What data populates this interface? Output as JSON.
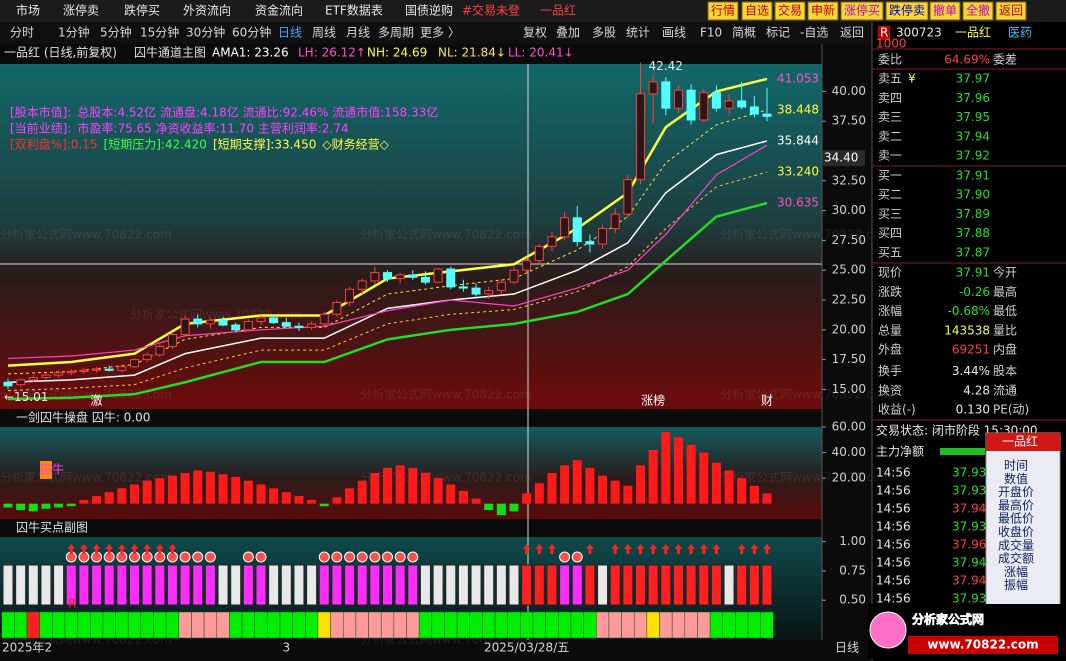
{
  "menu": [
    "市场",
    "涨停卖",
    "跌停买",
    "外资流向",
    "资金流向",
    "ETF数据表",
    "国债逆购",
    "#交易未登",
    "一品红"
  ],
  "buttons": [
    "行情",
    "自选",
    "交易",
    "申新",
    "涨停买",
    "跌停卖",
    "撤单",
    "全撤",
    "返回"
  ],
  "periods": [
    "分时",
    "1分钟",
    "5分钟",
    "15分钟",
    "30分钟",
    "60分钟",
    "日线",
    "周线",
    "月线",
    "多周期",
    "更多 〉"
  ],
  "active_period": 6,
  "tools": [
    "复权",
    "叠加",
    "多股",
    "统计",
    "画线",
    "F10",
    "简概",
    "标记",
    "-自选",
    "返回"
  ],
  "header": {
    "title": "一品红 (日线,前复权)",
    "indicator": "囚牛通道主图",
    "items": [
      {
        "text": "AMA1: 23.26",
        "color": "#ffffff"
      },
      {
        "text": "LH: 26.12↑",
        "color": "#ff50d0"
      },
      {
        "text": "NH: 24.69",
        "color": "#ffff40"
      },
      {
        "text": "NL: 21.84↓",
        "color": "#ffe060"
      },
      {
        "text": "LL: 20.41↓",
        "color": "#ff50d0"
      }
    ]
  },
  "info_lines": [
    [
      {
        "text": "[股本市值]:",
        "color": "#ff40ff"
      },
      {
        "text": "总股本:4.52亿 流通盘:4.18亿 流通比:92.46% 流通市值:158.33亿",
        "color": "#ff40ff"
      }
    ],
    [
      {
        "text": "[当前业绩]:",
        "color": "#ff40ff"
      },
      {
        "text": "市盈率:75.65 净资收益率:11.70 主营利润率:2.74",
        "color": "#ff40ff"
      }
    ],
    [
      {
        "text": "[双利盘%]:0.15",
        "color": "#ff3030"
      },
      {
        "text": "[短期压力]:42.420",
        "color": "#40ff40"
      },
      {
        "text": "[短期支撑]:33.450",
        "color": "#ffff40"
      },
      {
        "text": "◇财务经营◇",
        "color": "#ffff40"
      }
    ]
  ],
  "watermark": "分析家公式网www.70822.com",
  "chart_data": [
    {
      "type": "candlestick",
      "ylim": [
        13.44,
        42.3
      ],
      "yticks": [
        {
          "value": 40,
          "label": "40.00"
        },
        {
          "value": 37.5,
          "label": "37.50"
        },
        {
          "value": 32.5,
          "label": "32.50"
        },
        {
          "value": 30,
          "label": "30.00"
        },
        {
          "value": 27.5,
          "label": "27.50"
        },
        {
          "value": 25,
          "label": "25.00"
        },
        {
          "value": 22.5,
          "label": "22.50"
        },
        {
          "value": 20,
          "label": "20.00"
        },
        {
          "value": 17.5,
          "label": "17.50"
        },
        {
          "value": 15,
          "label": "15.00"
        }
      ],
      "cursor_price": {
        "value": 34.4,
        "label": "34.40"
      },
      "up_color": "#ff3c3c",
      "down_color": "#54ffff",
      "categories": [
        "2025年2",
        null,
        null,
        null,
        null,
        null,
        null,
        null,
        null,
        null,
        null,
        null,
        null,
        null,
        null,
        null,
        null,
        null,
        null,
        null,
        null,
        null,
        "3",
        null,
        null,
        null,
        null,
        null,
        null,
        null,
        null,
        null,
        null,
        null,
        null,
        null,
        null,
        null,
        null,
        null,
        null,
        "2025/03/28/五",
        null,
        null,
        null,
        null,
        null,
        null,
        null,
        null,
        null,
        null,
        null,
        null,
        null,
        null,
        null,
        null,
        null,
        null,
        null
      ],
      "events": [
        null,
        null,
        null,
        null,
        null,
        null,
        null,
        "激",
        null,
        null,
        null,
        null,
        null,
        null,
        null,
        null,
        null,
        null,
        null,
        null,
        null,
        null,
        null,
        null,
        null,
        null,
        null,
        null,
        null,
        null,
        null,
        null,
        null,
        null,
        null,
        null,
        null,
        null,
        null,
        null,
        null,
        null,
        null,
        null,
        null,
        null,
        null,
        null,
        null,
        null,
        null,
        "涨榜",
        null,
        null,
        null,
        null,
        null,
        null,
        null,
        null,
        "财"
      ],
      "open": [
        15.6,
        15.4,
        15.8,
        16.0,
        16.2,
        16.4,
        16.5,
        16.6,
        16.7,
        16.6,
        16.9,
        17.5,
        17.9,
        18.6,
        19.6,
        20.9,
        20.5,
        20.8,
        20.4,
        20.0,
        20.7,
        21.0,
        20.6,
        20.3,
        20.2,
        20.5,
        21.3,
        22.3,
        23.4,
        24.1,
        24.8,
        24.3,
        24.6,
        24.4,
        24.0,
        25.1,
        23.6,
        23.5,
        23.0,
        23.3,
        24.0,
        25.0,
        25.8,
        27.0,
        27.8,
        29.4,
        27.4,
        27.2,
        28.5,
        29.7,
        32.6,
        39.8,
        40.8,
        38.6,
        40.1,
        37.6,
        39.9,
        38.6,
        39.2,
        38.7,
        38.1
      ],
      "high": [
        15.9,
        15.9,
        16.2,
        16.4,
        16.6,
        16.7,
        16.8,
        16.9,
        17.0,
        17.1,
        17.6,
        18.1,
        18.8,
        19.8,
        21.2,
        21.3,
        21.0,
        21.1,
        20.6,
        20.9,
        21.2,
        21.3,
        21.0,
        20.6,
        20.7,
        21.5,
        22.5,
        23.6,
        24.3,
        25.3,
        25.0,
        24.8,
        25.0,
        24.9,
        25.2,
        25.3,
        24.2,
        23.9,
        23.6,
        24.2,
        25.3,
        26.1,
        27.2,
        28.2,
        29.9,
        30.4,
        28.0,
        28.8,
        30.2,
        33.0,
        42.42,
        41.5,
        41.2,
        40.5,
        40.6,
        40.2,
        40.5,
        39.8,
        40.8,
        39.6,
        40.3
      ],
      "low": [
        15.01,
        15.2,
        15.6,
        15.8,
        16.0,
        16.2,
        16.3,
        16.4,
        16.5,
        16.4,
        16.8,
        17.3,
        17.7,
        18.4,
        19.4,
        20.2,
        20.1,
        20.3,
        19.8,
        19.9,
        20.4,
        20.5,
        20.2,
        19.9,
        20.0,
        20.3,
        21.1,
        22.0,
        23.0,
        23.8,
        24.0,
        23.9,
        24.2,
        23.8,
        23.9,
        23.4,
        23.2,
        22.8,
        22.6,
        23.0,
        23.8,
        24.7,
        25.5,
        26.6,
        27.5,
        27.0,
        26.5,
        26.8,
        28.1,
        29.4,
        32.2,
        37.3,
        38.0,
        38.2,
        37.2,
        37.4,
        38.3,
        38.0,
        38.5,
        37.8,
        37.5
      ],
      "close": [
        15.3,
        15.8,
        16.0,
        16.2,
        16.4,
        16.5,
        16.6,
        16.7,
        16.6,
        16.9,
        17.5,
        17.9,
        18.6,
        19.6,
        20.9,
        20.5,
        20.8,
        20.4,
        20.0,
        20.7,
        21.0,
        20.6,
        20.3,
        20.2,
        20.5,
        21.3,
        22.3,
        23.4,
        24.1,
        24.8,
        24.3,
        24.6,
        24.4,
        24.0,
        25.1,
        23.6,
        23.5,
        23.0,
        23.3,
        24.0,
        25.0,
        25.8,
        27.0,
        27.8,
        29.4,
        27.4,
        27.2,
        28.5,
        29.7,
        32.6,
        39.8,
        40.8,
        38.6,
        40.1,
        37.6,
        39.9,
        38.6,
        39.2,
        38.7,
        38.1,
        37.91
      ],
      "annotations": [
        {
          "text": "42.42",
          "value": 42.42
        },
        {
          "text": "←15.01",
          "value": 15.01
        }
      ],
      "series": [
        {
          "color": "#ffff40",
          "width": 2.5,
          "dashed": false,
          "label_color": "#ff50c0",
          "x": [
            0,
            5,
            10,
            14,
            20,
            25,
            30,
            35,
            40,
            45,
            49,
            52,
            56,
            60
          ],
          "values": [
            17.0,
            17.3,
            18.0,
            20.5,
            21.2,
            21.2,
            24.3,
            24.9,
            25.5,
            28.5,
            31.5,
            37.0,
            40.0,
            41.053
          ],
          "value_labels": [
            null,
            null,
            null,
            null,
            null,
            null,
            null,
            null,
            null,
            null,
            null,
            null,
            null,
            "41.053"
          ]
        },
        {
          "color": "#ffe040",
          "width": 1,
          "dashed": true,
          "label_color": "#ffff40",
          "x": [
            0,
            5,
            10,
            14,
            20,
            25,
            30,
            35,
            40,
            45,
            49,
            52,
            56,
            60
          ],
          "values": [
            16.3,
            16.5,
            17.1,
            19.2,
            20.2,
            20.2,
            23.0,
            23.7,
            24.3,
            26.7,
            29.5,
            34.0,
            37.2,
            38.448
          ],
          "value_labels": [
            null,
            null,
            null,
            null,
            null,
            null,
            null,
            null,
            null,
            null,
            null,
            null,
            null,
            "38.448"
          ]
        },
        {
          "color": "#ffffff",
          "width": 1.5,
          "dashed": false,
          "label_color": "#ffffff",
          "x": [
            0,
            5,
            10,
            14,
            20,
            25,
            30,
            35,
            40,
            45,
            49,
            52,
            56,
            60
          ],
          "values": [
            15.6,
            15.8,
            16.2,
            18.0,
            19.3,
            19.3,
            21.8,
            22.5,
            23.0,
            25.0,
            27.3,
            31.5,
            34.7,
            35.844
          ],
          "value_labels": [
            null,
            null,
            null,
            null,
            null,
            null,
            null,
            null,
            null,
            null,
            null,
            null,
            null,
            "35.844"
          ]
        },
        {
          "color": "#ffc040",
          "width": 1,
          "dashed": true,
          "label_color": "#ffff40",
          "x": [
            0,
            5,
            10,
            14,
            20,
            25,
            30,
            35,
            40,
            45,
            49,
            52,
            56,
            60
          ],
          "values": [
            14.9,
            15.1,
            15.4,
            16.8,
            18.3,
            18.3,
            20.5,
            21.3,
            21.7,
            23.2,
            25.3,
            28.5,
            32.0,
            33.24
          ],
          "value_labels": [
            null,
            null,
            null,
            null,
            null,
            null,
            null,
            null,
            null,
            null,
            null,
            null,
            null,
            "33.240"
          ]
        },
        {
          "color": "#22dd22",
          "width": 2.5,
          "dashed": false,
          "label_color": "#ff50c0",
          "x": [
            0,
            5,
            10,
            14,
            20,
            25,
            30,
            35,
            40,
            45,
            49,
            52,
            56,
            60
          ],
          "values": [
            14.2,
            14.3,
            14.6,
            15.6,
            17.3,
            17.3,
            19.2,
            20.0,
            20.5,
            21.5,
            23.0,
            25.8,
            29.5,
            30.635
          ],
          "value_labels": [
            null,
            null,
            null,
            null,
            null,
            null,
            null,
            null,
            null,
            null,
            null,
            null,
            null,
            "30.635"
          ]
        },
        {
          "color": "#ff40c0",
          "width": 1.2,
          "dashed": false,
          "label_color": "#ff40c0",
          "x": [
            0,
            5,
            10,
            14,
            20,
            25,
            30,
            35,
            40,
            45,
            49,
            52,
            56,
            60
          ],
          "values": [
            17.6,
            17.8,
            18.3,
            19.5,
            20.0,
            20.3,
            21.6,
            22.5,
            22.0,
            23.5,
            25.0,
            28.0,
            33.0,
            35.5
          ],
          "value_labels": [
            null,
            null,
            null,
            null,
            null,
            null,
            null,
            null,
            null,
            null,
            null,
            null,
            null,
            null
          ]
        }
      ]
    },
    {
      "type": "bar",
      "title": "一剑囚牛操盘 囚牛: 0.00",
      "tag": "囚牛",
      "ylim": [
        -12,
        60
      ],
      "yticks": [
        {
          "value": 60,
          "label": "60.00"
        },
        {
          "value": 40,
          "label": "40.00"
        },
        {
          "value": 20,
          "label": "20.00"
        }
      ],
      "up_color": "#ff1a1a",
      "down_color": "#10e010",
      "values": [
        -3,
        -5,
        -6,
        -4,
        -3,
        -2,
        3,
        6,
        9,
        12,
        15,
        18,
        20,
        22,
        24,
        26,
        25,
        23,
        21,
        18,
        15,
        12,
        9,
        6,
        3,
        -2,
        5,
        12,
        18,
        24,
        28,
        30,
        28,
        24,
        20,
        15,
        10,
        4,
        -5,
        -9,
        -6,
        8,
        16,
        24,
        30,
        34,
        28,
        22,
        18,
        14,
        30,
        42,
        56,
        52,
        46,
        40,
        32,
        26,
        20,
        14,
        8
      ]
    },
    {
      "type": "signal",
      "title": "囚牛买点副图",
      "tag": "R",
      "ylim": [
        0.16,
        1.04
      ],
      "yticks": [
        {
          "value": 1,
          "label": "1.00"
        },
        {
          "value": 0.75,
          "label": "0.75"
        },
        {
          "value": 0.5,
          "label": "0.50"
        }
      ],
      "top_row_colors": [
        "#e8e8e8",
        "#e8e8e8",
        "#e8e8e8",
        "#e8e8e8",
        "#e8e8e8",
        "#ff2cff",
        "#ff2cff",
        "#ff2cff",
        "#ff2cff",
        "#ff2cff",
        "#ff2cff",
        "#ff2cff",
        "#ff2cff",
        "#ff2cff",
        "#ff2cff",
        "#ff2cff",
        "#ff2cff",
        "#e8e8e8",
        "#e8e8e8",
        "#ff2cff",
        "#ff2cff",
        "#e8e8e8",
        "#e8e8e8",
        "#e8e8e8",
        "#e8e8e8",
        "#ff2cff",
        "#ff2cff",
        "#ff2cff",
        "#ff2cff",
        "#ff2cff",
        "#ff2cff",
        "#ff2cff",
        "#ff2cff",
        "#e8e8e8",
        "#e8e8e8",
        "#e8e8e8",
        "#e8e8e8",
        "#e8e8e8",
        "#e8e8e8",
        "#e8e8e8",
        "#e8e8e8",
        "#ff2020",
        "#ff2020",
        "#ff2020",
        "#ff2cff",
        "#ff2cff",
        "#ff2020",
        "#e8e8e8",
        "#ff2020",
        "#ff2020",
        "#ff2020",
        "#ff2020",
        "#ff2020",
        "#ff2020",
        "#ff2020",
        "#ff2020",
        "#ff2020",
        "#e8e8e8",
        "#ff2020",
        "#ff2020",
        "#ff2020"
      ],
      "bottom_row_colors": [
        "#00ee00",
        "#00ee00",
        "#ff2020",
        "#00ee00",
        "#00ee00",
        "#00ee00",
        "#00ee00",
        "#00ee00",
        "#00ee00",
        "#00ee00",
        "#00ee00",
        "#00ee00",
        "#00ee00",
        "#00ee00",
        "#ff9a9a",
        "#ff9a9a",
        "#ff9a9a",
        "#ff9a9a",
        "#00ee00",
        "#00ee00",
        "#00ee00",
        "#00ee00",
        "#00ee00",
        "#00ee00",
        "#00ee00",
        "#ffe000",
        "#ff9a9a",
        "#ff9a9a",
        "#ff9a9a",
        "#ff9a9a",
        "#ff9a9a",
        "#ff9a9a",
        "#ff9a9a",
        "#00ee00",
        "#00ee00",
        "#00ee00",
        "#00ee00",
        "#00ee00",
        "#00ee00",
        "#00ee00",
        "#00ee00",
        "#00ee00",
        "#00ee00",
        "#00ee00",
        "#00ee00",
        "#00ee00",
        "#00ee00",
        "#ff9a9a",
        "#ff9a9a",
        "#ff9a9a",
        "#ff9a9a",
        "#ffe000",
        "#ff9a9a",
        "#ff9a9a",
        "#ff9a9a",
        "#ff9a9a",
        "#00ee00",
        "#00ee00",
        "#00ee00",
        "#00ee00",
        "#00ee00"
      ]
    }
  ],
  "quote": {
    "badge": "R",
    "badge_sub": "1000",
    "code": "300723",
    "name": "一品红",
    "sector": "医药",
    "ratio": [
      "委比",
      "64.69%",
      "委差"
    ],
    "ask_flag": "¥",
    "asks": [
      [
        "卖五",
        "37.97"
      ],
      [
        "卖四",
        "37.96"
      ],
      [
        "卖三",
        "37.95"
      ],
      [
        "卖二",
        "37.94"
      ],
      [
        "卖一",
        "37.92"
      ]
    ],
    "bids": [
      [
        "买一",
        "37.91"
      ],
      [
        "买二",
        "37.90"
      ],
      [
        "买三",
        "37.89"
      ],
      [
        "买四",
        "37.88"
      ],
      [
        "买五",
        "37.87"
      ]
    ],
    "stats": [
      [
        "现价",
        "37.91",
        "今开"
      ],
      [
        "涨跌",
        "-0.26",
        "最高"
      ],
      [
        "涨幅",
        "-0.68%",
        "最低"
      ],
      [
        "总量",
        "143538",
        "量比"
      ],
      [
        "外盘",
        "69251",
        "内盘"
      ],
      [
        "换手",
        "3.44%",
        "股本"
      ],
      [
        "换资",
        "4.28",
        "流通"
      ],
      [
        "收益(-)",
        "0.130",
        "PE(动)"
      ]
    ],
    "status": "交易状态: 闭市阶段 15:30:00",
    "main_net": "主力净额",
    "ticks": [
      [
        "14:56",
        "37.93"
      ],
      [
        "14:56",
        "37.93"
      ],
      [
        "14:56",
        "37.94"
      ],
      [
        "14:56",
        "37.93"
      ],
      [
        "14:56",
        "37.96"
      ],
      [
        "14:56",
        "37.94"
      ],
      [
        "14:56",
        "37.94"
      ],
      [
        "14:56",
        "37.93"
      ]
    ]
  },
  "popup": {
    "title": "一品红",
    "items": [
      "时间",
      "数值",
      "开盘价",
      "最高价",
      "最低价",
      "收盘价",
      "成交量",
      "成交额",
      "涨幅",
      "振幅"
    ]
  },
  "logo": {
    "name": "分析家公式网",
    "url": "www.70822.com"
  },
  "corner": "日线"
}
